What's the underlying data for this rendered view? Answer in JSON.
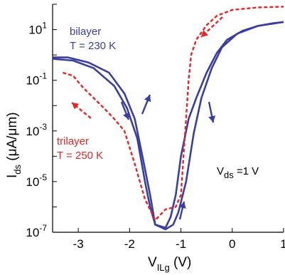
{
  "chart_data": {
    "type": "line",
    "xlabel": {
      "main": "V",
      "sub": "ILg",
      "rest": " (V)"
    },
    "ylabel": {
      "main": "I",
      "sub": "ds",
      "rest": " (μA/μm)"
    },
    "xlim": [
      -3.5,
      1.0
    ],
    "ylim_log10": [
      -7,
      2
    ],
    "yscale": "log",
    "x_ticks": [
      {
        "value": -3,
        "label": "-3"
      },
      {
        "value": -2,
        "label": "-2"
      },
      {
        "value": -1,
        "label": "-1"
      },
      {
        "value": 0,
        "label": "0"
      },
      {
        "value": 1,
        "label": "1"
      }
    ],
    "y_ticks": [
      {
        "exp": 1,
        "base": "10",
        "sup": "1"
      },
      {
        "exp": -1,
        "base": "10",
        "sup": "-1"
      },
      {
        "exp": -3,
        "base": "10",
        "sup": "-3"
      },
      {
        "exp": -5,
        "base": "10",
        "sup": "-5"
      },
      {
        "exp": -7,
        "base": "10",
        "sup": "-7"
      }
    ],
    "series": [
      {
        "color": "#3a3f9e",
        "style": "solid",
        "points": [
          [
            -3.5,
            0.8
          ],
          [
            -3.2,
            0.8
          ],
          [
            -2.8,
            0.5
          ],
          [
            -2.4,
            0.2
          ],
          [
            -2.1,
            0.03
          ],
          [
            -1.9,
            0.003
          ],
          [
            -1.75,
            0.0001
          ],
          [
            -1.6,
            3e-06
          ],
          [
            -1.5,
            2e-07
          ],
          [
            -1.3,
            1.5e-07
          ],
          [
            -1.2,
            4e-07
          ],
          [
            -1.1,
            3e-06
          ],
          [
            -1.0,
            0.0001
          ],
          [
            -0.85,
            0.003
          ],
          [
            -0.7,
            0.02
          ],
          [
            -0.5,
            0.2
          ],
          [
            -0.3,
            1.2
          ],
          [
            -0.1,
            4
          ],
          [
            0.2,
            9
          ],
          [
            0.5,
            14
          ],
          [
            0.8,
            18
          ],
          [
            1.0,
            20
          ]
        ]
      },
      {
        "color": "#3a3f9e",
        "style": "solid",
        "points": [
          [
            -3.5,
            0.7
          ],
          [
            -3.1,
            0.6
          ],
          [
            -2.7,
            0.3
          ],
          [
            -2.3,
            0.06
          ],
          [
            -2.05,
            0.008
          ],
          [
            -1.85,
            0.0005
          ],
          [
            -1.7,
            1e-05
          ],
          [
            -1.6,
            1e-06
          ],
          [
            -1.5,
            2e-07
          ],
          [
            -1.3,
            1.3e-07
          ],
          [
            -1.15,
            2e-07
          ],
          [
            -1.05,
            6e-07
          ],
          [
            -0.9,
            1e-05
          ],
          [
            -0.75,
            0.0008
          ],
          [
            -0.6,
            0.02
          ],
          [
            -0.4,
            0.3
          ],
          [
            -0.2,
            2
          ],
          [
            0.1,
            7
          ],
          [
            0.5,
            14
          ],
          [
            1.0,
            20
          ]
        ]
      },
      {
        "color": "#e32626",
        "style": "dashed",
        "points": [
          [
            -3.3,
            0.2
          ],
          [
            -3.1,
            0.15
          ],
          [
            -2.9,
            0.05
          ],
          [
            -2.7,
            0.02
          ],
          [
            -2.5,
            0.008
          ],
          [
            -2.3,
            0.003
          ],
          [
            -2.1,
            0.001
          ],
          [
            -1.9,
            5e-05
          ],
          [
            -1.7,
            2e-06
          ],
          [
            -1.5,
            3e-07
          ],
          [
            -1.3,
            8e-07
          ],
          [
            -1.1,
            1e-06
          ],
          [
            -1.0,
            3e-06
          ],
          [
            -0.95,
            0.0001
          ],
          [
            -0.9,
            0.003
          ],
          [
            -0.85,
            0.1
          ],
          [
            -0.8,
            1
          ],
          [
            -0.7,
            4
          ],
          [
            -0.5,
            15
          ],
          [
            -0.3,
            35
          ],
          [
            0.0,
            60
          ],
          [
            0.5,
            75
          ],
          [
            1.0,
            80
          ]
        ]
      }
    ],
    "annotations": {
      "bilayer_name": "bilayer",
      "bilayer_temp": "T = 230 K",
      "trilayer_name": "trilayer",
      "trilayer_temp": "T = 250 K",
      "vds_main": "V",
      "vds_sub": "ds",
      "vds_rest": " =1 V"
    }
  }
}
